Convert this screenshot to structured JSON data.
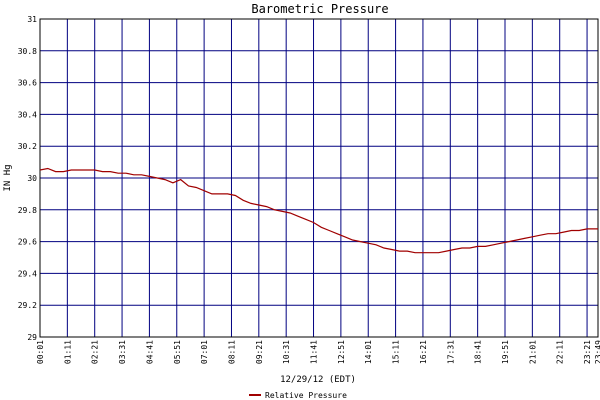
{
  "chart_data": {
    "type": "line",
    "title": "Barometric Pressure",
    "xlabel": "12/29/12 (EDT)",
    "ylabel": "IN Hg",
    "ylim": [
      29,
      31
    ],
    "y_ticks": [
      "29",
      "29.2",
      "29.4",
      "29.6",
      "29.8",
      "30",
      "30.2",
      "30.4",
      "30.6",
      "30.8",
      "31"
    ],
    "x_ticks": [
      "00:01",
      "01:11",
      "02:21",
      "03:31",
      "04:41",
      "05:51",
      "07:01",
      "08:11",
      "09:21",
      "10:31",
      "11:41",
      "12:51",
      "14:01",
      "15:11",
      "16:21",
      "17:31",
      "18:41",
      "19:51",
      "21:01",
      "22:11",
      "23:21",
      "23:49"
    ],
    "grid": true,
    "legend_position": "bottom-center",
    "colors": {
      "line": "#a00000",
      "grid": "#000080",
      "axes": "#000000",
      "background": "#ffffff"
    },
    "series": [
      {
        "name": "Relative Pressure",
        "x_minutes": [
          0,
          20,
          40,
          60,
          80,
          100,
          120,
          140,
          160,
          180,
          200,
          220,
          240,
          260,
          280,
          300,
          320,
          340,
          360,
          380,
          400,
          420,
          440,
          460,
          480,
          500,
          520,
          540,
          560,
          580,
          600,
          620,
          640,
          660,
          680,
          700,
          720,
          740,
          760,
          780,
          800,
          820,
          840,
          860,
          880,
          900,
          920,
          940,
          960,
          980,
          1000,
          1020,
          1040,
          1060,
          1080,
          1100,
          1120,
          1140,
          1160,
          1180,
          1200,
          1220,
          1240,
          1260,
          1280,
          1300,
          1320,
          1340,
          1360,
          1380,
          1400,
          1420,
          1428
        ],
        "values": [
          30.05,
          30.06,
          30.04,
          30.04,
          30.05,
          30.05,
          30.05,
          30.05,
          30.04,
          30.04,
          30.03,
          30.03,
          30.02,
          30.02,
          30.01,
          30.0,
          29.99,
          29.97,
          29.99,
          29.95,
          29.94,
          29.92,
          29.9,
          29.9,
          29.9,
          29.89,
          29.86,
          29.84,
          29.83,
          29.82,
          29.8,
          29.79,
          29.78,
          29.76,
          29.74,
          29.72,
          29.69,
          29.67,
          29.65,
          29.63,
          29.61,
          29.6,
          29.59,
          29.58,
          29.56,
          29.55,
          29.54,
          29.54,
          29.53,
          29.53,
          29.53,
          29.53,
          29.54,
          29.55,
          29.56,
          29.56,
          29.57,
          29.57,
          29.58,
          29.59,
          29.6,
          29.61,
          29.62,
          29.63,
          29.64,
          29.65,
          29.65,
          29.66,
          29.67,
          29.67,
          29.68,
          29.68,
          29.68
        ]
      }
    ]
  }
}
